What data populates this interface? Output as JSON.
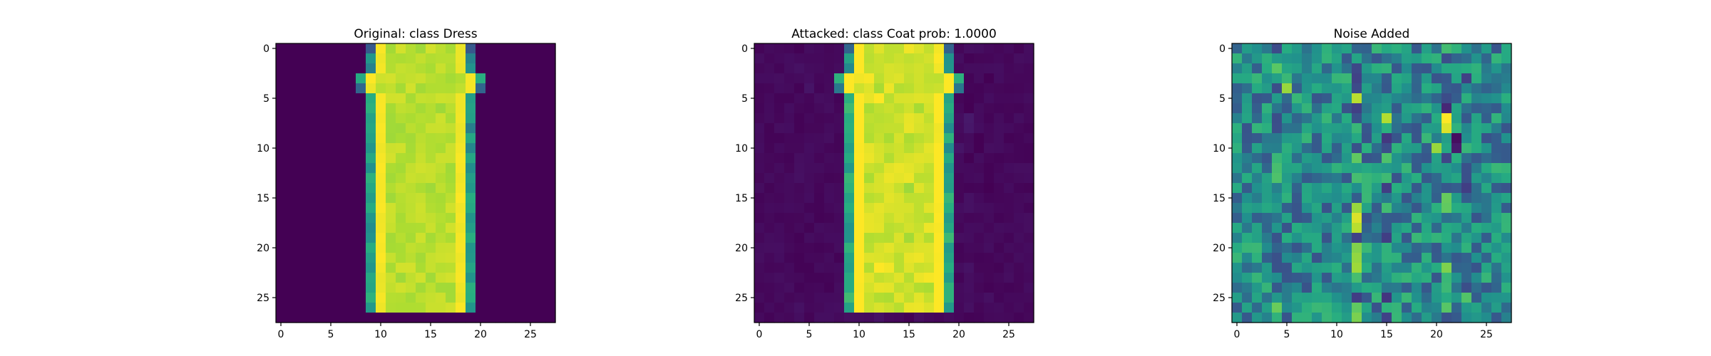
{
  "chart_data": [
    {
      "type": "heatmap",
      "title": "Original: class Dress",
      "image_size": [
        28,
        28
      ],
      "xticks": [
        0,
        5,
        10,
        15,
        20,
        25
      ],
      "yticks": [
        0,
        5,
        10,
        15,
        20,
        25
      ],
      "colormap": "viridis",
      "content": "dress silhouette (bright yellow-green) on dark purple background"
    },
    {
      "type": "heatmap",
      "title": "Attacked: class Coat prob: 1.0000",
      "image_size": [
        28,
        28
      ],
      "xticks": [
        0,
        5,
        10,
        15,
        20,
        25
      ],
      "yticks": [
        0,
        5,
        10,
        15,
        20,
        25
      ],
      "colormap": "viridis",
      "content": "same dress silhouette with faint streaky perturbation in background"
    },
    {
      "type": "heatmap",
      "title": "Noise Added",
      "image_size": [
        28,
        28
      ],
      "xticks": [
        0,
        5,
        10,
        15,
        20,
        25
      ],
      "yticks": [
        0,
        5,
        10,
        15,
        20,
        25
      ],
      "colormap": "viridis",
      "content": "adversarial noise pattern, mostly mid-range teal/green with vertical streaks"
    }
  ]
}
